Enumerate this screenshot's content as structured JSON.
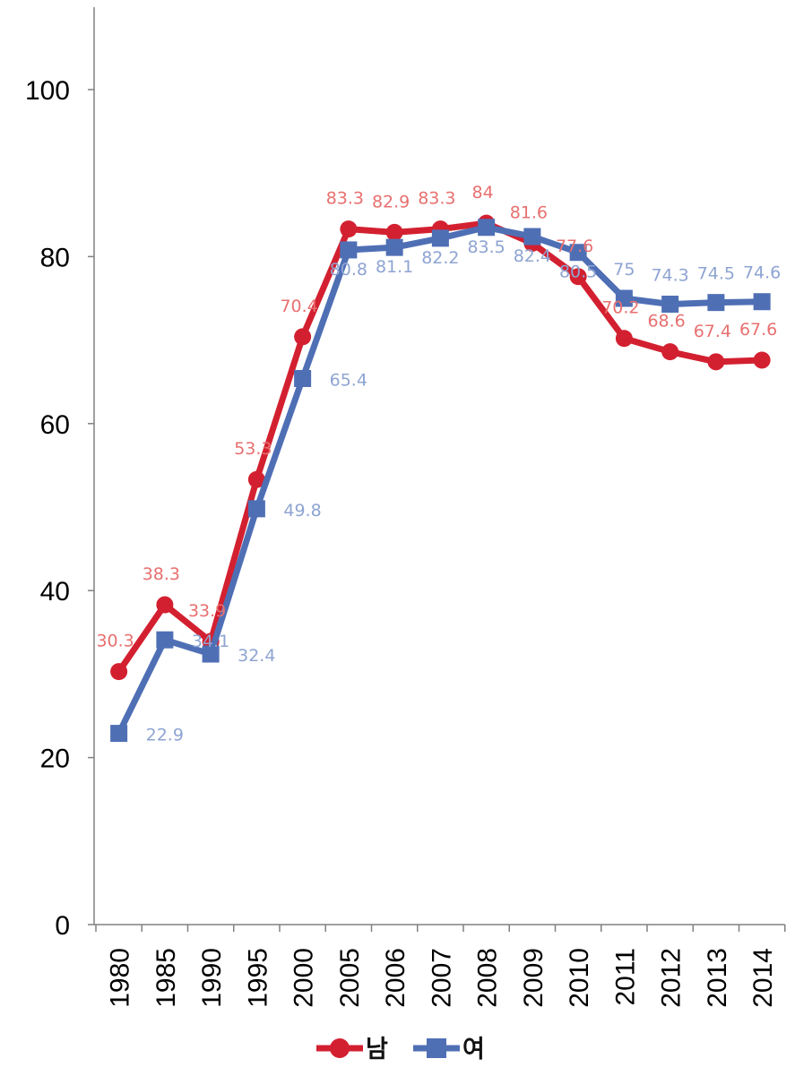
{
  "chart_data": {
    "type": "line",
    "categories": [
      "1980",
      "1985",
      "1990",
      "1995",
      "2000",
      "2005",
      "2006",
      "2007",
      "2008",
      "2009",
      "2010",
      "2011",
      "2012",
      "2013",
      "2014"
    ],
    "ylim": [
      0,
      110
    ],
    "yticks": [
      0,
      20,
      40,
      60,
      80,
      100
    ],
    "ytick_labels": [
      "0",
      "20",
      "40",
      "60",
      "80",
      "100"
    ],
    "grid": false,
    "legend_position": "bottom",
    "series": [
      {
        "name": "남",
        "color": "#d32030",
        "label_color": "#e87070",
        "marker": "circle",
        "values": [
          30.3,
          38.3,
          33.9,
          53.3,
          70.4,
          83.3,
          82.9,
          83.3,
          84,
          81.6,
          77.6,
          70.2,
          68.6,
          67.4,
          67.6
        ],
        "labels": [
          "30.3",
          "38.3",
          "33.9",
          "53.3",
          "70.4",
          "83.3",
          "82.9",
          "83.3",
          "84",
          "81.6",
          "77.6",
          "70.2",
          "68.6",
          "67.4",
          "67.6"
        ]
      },
      {
        "name": "여",
        "color": "#4f6fb5",
        "label_color": "#8ea4d2",
        "marker": "square",
        "values": [
          22.9,
          34.1,
          32.4,
          49.8,
          65.4,
          80.8,
          81.1,
          82.2,
          83.5,
          82.4,
          80.5,
          75,
          74.3,
          74.5,
          74.6
        ],
        "labels": [
          "22.9",
          "34.1",
          "32.4",
          "49.8",
          "65.4",
          "80.8",
          "81.1",
          "82.2",
          "83.5",
          "82.4",
          "80.5",
          "75",
          "74.3",
          "74.5",
          "74.6"
        ]
      }
    ]
  }
}
